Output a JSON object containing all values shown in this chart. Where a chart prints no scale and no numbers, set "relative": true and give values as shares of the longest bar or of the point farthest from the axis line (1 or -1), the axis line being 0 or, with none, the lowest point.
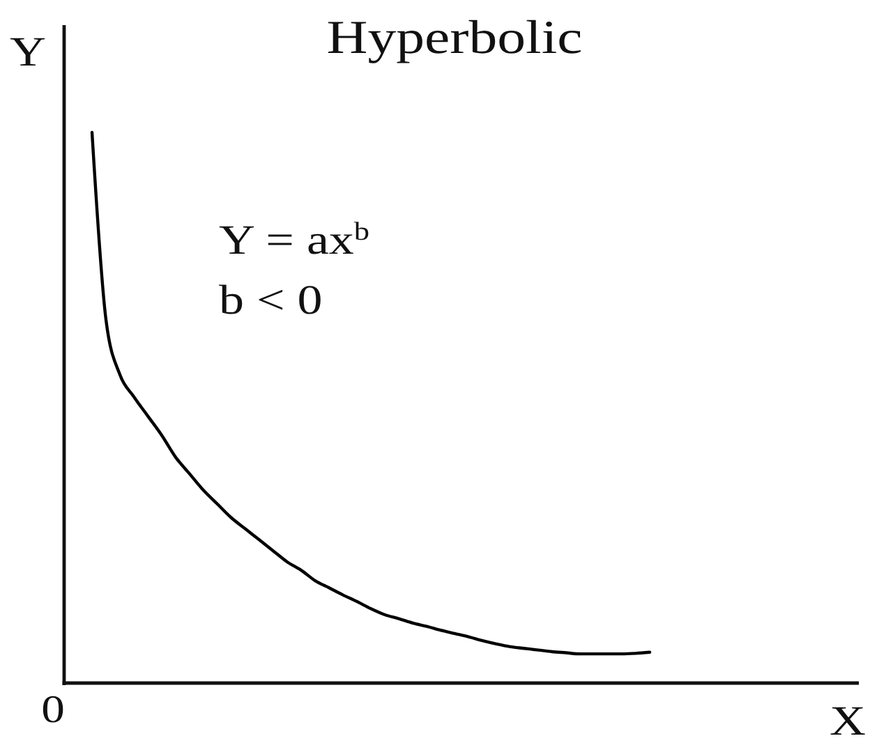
{
  "chart_data": {
    "type": "line",
    "title": "Hyperbolic",
    "xlabel": "X",
    "ylabel": "Y",
    "relative": true,
    "annotations": [
      "Y = ax$^{b}$",
      "b < 0",
      "0"
    ],
    "categories": [
      null,
      null,
      null,
      null,
      null,
      null,
      null,
      null,
      null,
      null,
      null,
      null,
      null,
      null,
      null,
      null,
      null,
      null,
      null,
      null,
      null,
      null,
      null,
      null,
      null,
      null,
      null,
      null,
      null,
      null,
      null,
      null,
      null,
      null,
      null,
      null,
      null,
      null,
      null,
      null,
      null,
      null,
      null,
      null,
      null,
      null,
      null,
      null,
      null,
      null,
      null,
      null,
      null,
      null,
      null,
      null,
      null,
      null
    ],
    "color": "#000000",
    "values": [
      null,
      null,
      1.0,
      0.66,
      0.56,
      0.52,
      0.485,
      0.45,
      0.41,
      0.38,
      0.35,
      0.325,
      0.3,
      0.28,
      0.26,
      0.24,
      0.22,
      0.205,
      0.186,
      0.173,
      0.16,
      0.148,
      0.135,
      0.124,
      0.117,
      0.109,
      0.103,
      0.096,
      0.09,
      0.084,
      0.077,
      0.071,
      0.066,
      0.063,
      0.06,
      0.057,
      0.055,
      0.053,
      0.053,
      0.053,
      0.053,
      0.054,
      0.056,
      null,
      null,
      null,
      null,
      null,
      null,
      null,
      null,
      null,
      null,
      null,
      null,
      null,
      null,
      null
    ]
  }
}
